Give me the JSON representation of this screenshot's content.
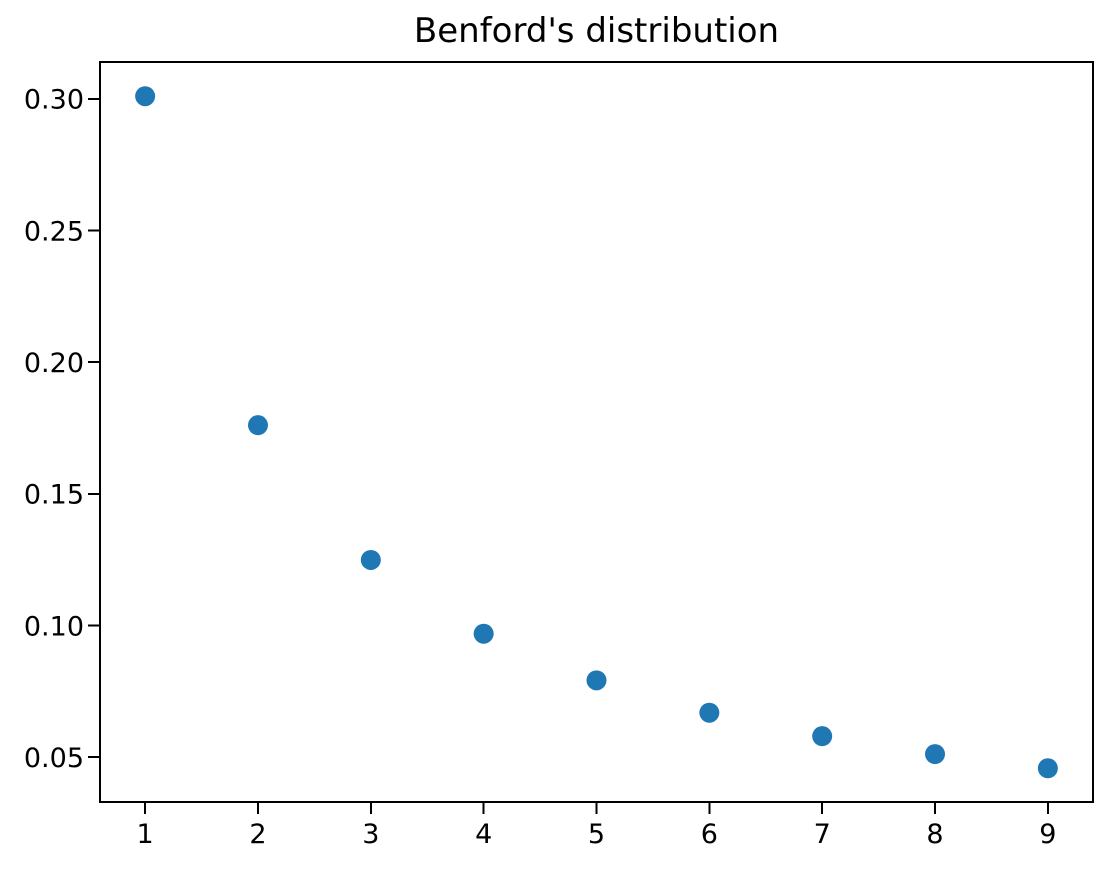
{
  "chart_data": {
    "type": "scatter",
    "title": "Benford's distribution",
    "xlabel": "",
    "ylabel": "",
    "x": [
      1,
      2,
      3,
      4,
      5,
      6,
      7,
      8,
      9
    ],
    "y": [
      0.301,
      0.1761,
      0.1249,
      0.0969,
      0.0792,
      0.0669,
      0.058,
      0.0512,
      0.0458
    ],
    "xlim": [
      0.6,
      9.4
    ],
    "ylim": [
      0.033,
      0.314
    ],
    "x_ticks": {
      "values": [
        1,
        2,
        3,
        4,
        5,
        6,
        7,
        8,
        9
      ],
      "labels": [
        "1",
        "2",
        "3",
        "4",
        "5",
        "6",
        "7",
        "8",
        "9"
      ]
    },
    "y_ticks": {
      "values": [
        0.05,
        0.1,
        0.15,
        0.2,
        0.25,
        0.3
      ],
      "labels": [
        "0.05",
        "0.10",
        "0.15",
        "0.20",
        "0.25",
        "0.30"
      ]
    },
    "grid": false,
    "legend": null,
    "marker": {
      "shape": "circle",
      "color": "#1f77b4",
      "radius_px": 10
    },
    "axis_color": "#000000",
    "background_color": "#ffffff"
  }
}
